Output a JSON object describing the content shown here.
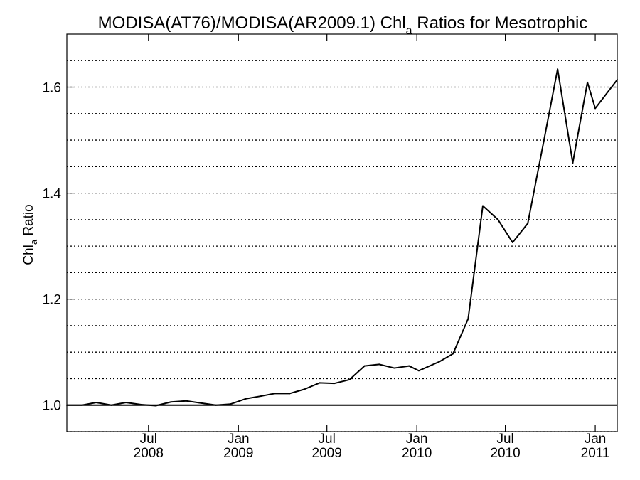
{
  "chart_data": {
    "type": "line",
    "title_main": "MODISA(AT76)/MODISA(AR2009.1)  Chl",
    "title_sub": "a",
    "title_rest": " Ratios for Mesotrophic",
    "ylabel_main": "Chl",
    "ylabel_sub": "a",
    "ylabel_rest": " Ratio",
    "xlim": [
      "2008-01-16",
      "2011-02-15"
    ],
    "ylim": [
      0.95,
      1.7
    ],
    "y_ticks": [
      {
        "value": 1.0,
        "label": "1.0"
      },
      {
        "value": 1.2,
        "label": "1.2"
      },
      {
        "value": 1.4,
        "label": "1.4"
      },
      {
        "value": 1.6,
        "label": "1.6"
      }
    ],
    "y_gridlines": [
      0.95,
      1.05,
      1.1,
      1.15,
      1.25,
      1.3,
      1.35,
      1.45,
      1.5,
      1.55,
      1.65
    ],
    "x_ticks": [
      {
        "date": "2008-07-01",
        "month": "Jul",
        "year": "2008"
      },
      {
        "date": "2009-01-01",
        "month": "Jan",
        "year": "2009"
      },
      {
        "date": "2009-07-01",
        "month": "Jul",
        "year": "2009"
      },
      {
        "date": "2010-01-01",
        "month": "Jan",
        "year": "2010"
      },
      {
        "date": "2010-07-01",
        "month": "Jul",
        "year": "2010"
      },
      {
        "date": "2011-01-01",
        "month": "Jan",
        "year": "2011"
      }
    ],
    "reference_line": 1.0,
    "grid": true,
    "series": [
      {
        "points": [
          [
            "2008-01-16",
            1.0
          ],
          [
            "2008-02-16",
            1.0
          ],
          [
            "2008-03-16",
            1.005
          ],
          [
            "2008-04-16",
            1.0
          ],
          [
            "2008-05-16",
            1.005
          ],
          [
            "2008-06-16",
            1.001
          ],
          [
            "2008-07-16",
            0.999
          ],
          [
            "2008-08-16",
            1.006
          ],
          [
            "2008-09-16",
            1.008
          ],
          [
            "2008-10-16",
            1.004
          ],
          [
            "2008-11-16",
            1.0
          ],
          [
            "2008-12-16",
            1.002
          ],
          [
            "2009-01-16",
            1.012
          ],
          [
            "2009-02-16",
            1.017
          ],
          [
            "2009-03-16",
            1.022
          ],
          [
            "2009-04-16",
            1.022
          ],
          [
            "2009-05-16",
            1.03
          ],
          [
            "2009-06-16",
            1.042
          ],
          [
            "2009-07-16",
            1.041
          ],
          [
            "2009-08-16",
            1.048
          ],
          [
            "2009-09-16",
            1.074
          ],
          [
            "2009-10-16",
            1.077
          ],
          [
            "2009-11-16",
            1.07
          ],
          [
            "2009-12-16",
            1.074
          ],
          [
            "2010-01-05",
            1.065
          ],
          [
            "2010-02-16",
            1.082
          ],
          [
            "2010-03-16",
            1.097
          ],
          [
            "2010-04-16",
            1.163
          ],
          [
            "2010-05-16",
            1.376
          ],
          [
            "2010-06-16",
            1.35
          ],
          [
            "2010-07-16",
            1.307
          ],
          [
            "2010-08-16",
            1.343
          ],
          [
            "2010-09-16",
            1.49
          ],
          [
            "2010-10-16",
            1.634
          ],
          [
            "2010-11-16",
            1.457
          ],
          [
            "2010-12-16",
            1.609
          ],
          [
            "2011-01-01",
            1.56
          ],
          [
            "2011-02-15",
            1.614
          ]
        ]
      }
    ]
  }
}
